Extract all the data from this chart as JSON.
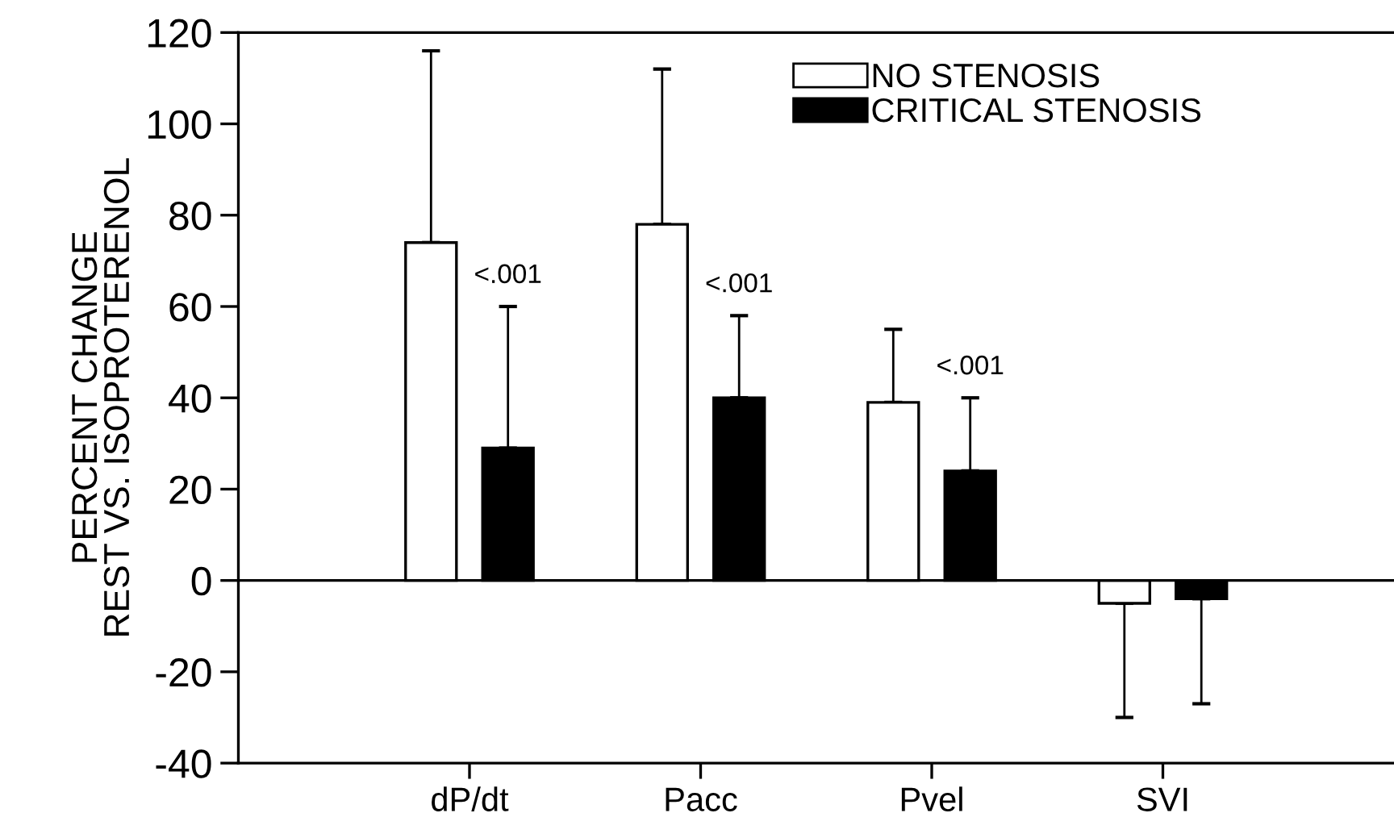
{
  "chart_data": {
    "type": "bar",
    "ylabel": "PERCENT CHANGE\nREST VS. ISOPROTERENOL",
    "categories": [
      "dP/dt",
      "Pacc",
      "Pvel",
      "SVI"
    ],
    "series": [
      {
        "name": "NO STENOSIS",
        "color": "#ffffff",
        "values": [
          74,
          78,
          39,
          -5
        ],
        "errors": [
          [
            74,
            116
          ],
          [
            78,
            112
          ],
          [
            39,
            55
          ],
          [
            -30,
            -5
          ]
        ]
      },
      {
        "name": "CRITICAL STENOSIS",
        "color": "#000000",
        "values": [
          29,
          40,
          24,
          -4
        ],
        "errors": [
          [
            29,
            60
          ],
          [
            40,
            58
          ],
          [
            24,
            40
          ],
          [
            -27,
            -4
          ]
        ]
      }
    ],
    "ylim": [
      -40,
      120
    ],
    "yticks": [
      -40,
      -20,
      0,
      20,
      40,
      60,
      80,
      100,
      120
    ],
    "ref_lines": [
      {
        "axis": "y",
        "value": 0,
        "color": "#000000"
      }
    ],
    "annotations": [
      "<.001",
      "<.001",
      "<.001"
    ],
    "legend": "top right",
    "grid": false
  }
}
